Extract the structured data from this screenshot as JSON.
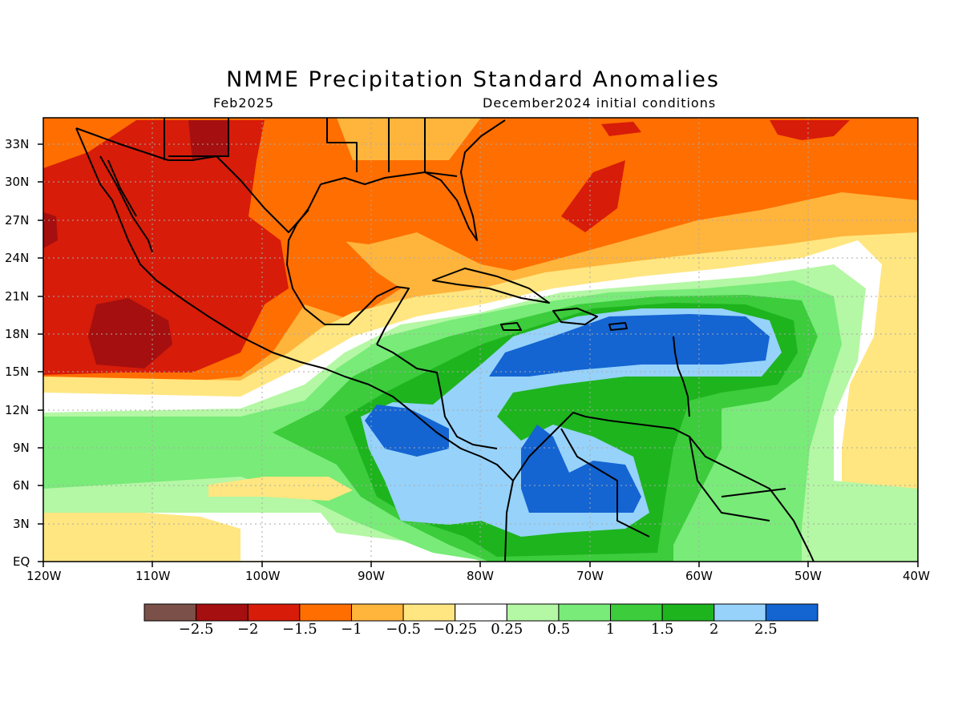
{
  "title": "NMME Precipitation Standard Anomalies",
  "subtitle_left": "Feb2025",
  "subtitle_right": "December2024 initial conditions",
  "map": {
    "lon_range": [
      -120,
      -40
    ],
    "lat_range": [
      0,
      35
    ],
    "lat_labels": [
      "33N",
      "30N",
      "27N",
      "24N",
      "21N",
      "18N",
      "15N",
      "12N",
      "9N",
      "6N",
      "3N",
      "EQ"
    ],
    "lon_labels": [
      "120W",
      "110W",
      "100W",
      "90W",
      "80W",
      "70W",
      "60W",
      "50W",
      "40W"
    ],
    "gridlines": true
  },
  "colorbar": {
    "colors": [
      "#7a5048",
      "#a50f0f",
      "#d71c0a",
      "#ff6e00",
      "#ffb43c",
      "#ffe680",
      "#ffffff",
      "#b4f7a4",
      "#78eb78",
      "#3ccc3c",
      "#1eb41e",
      "#96d2fa",
      "#1464d2"
    ],
    "labels": [
      "-2.5",
      "-2",
      "-1.5",
      "-1",
      "-0.5",
      "-0.25",
      "0.25",
      "0.5",
      "1",
      "1.5",
      "2",
      "2.5"
    ]
  }
}
